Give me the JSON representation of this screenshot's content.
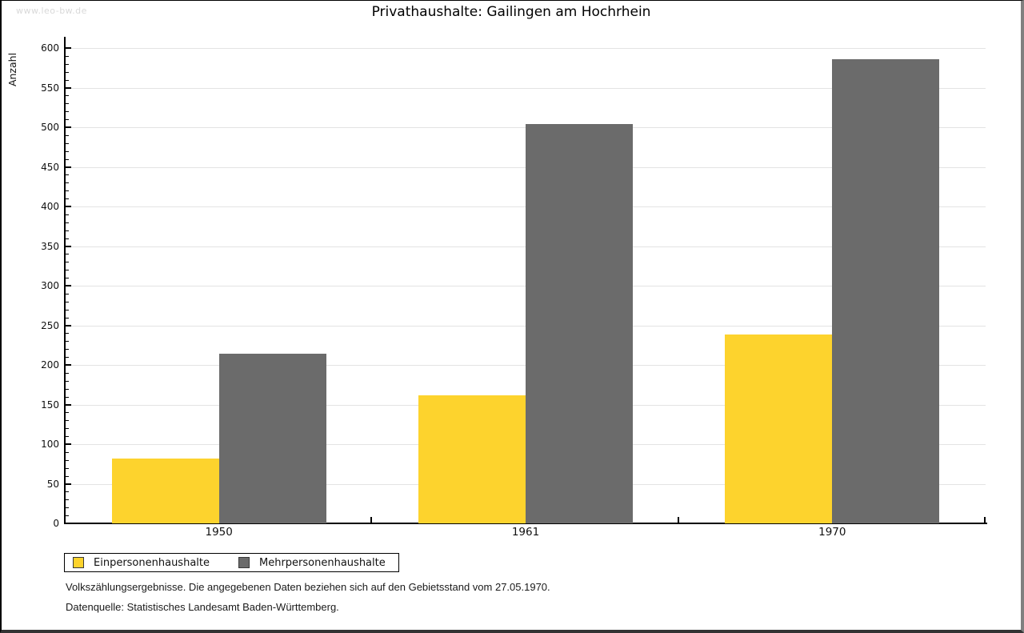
{
  "watermark": "www.leo-bw.de",
  "title": "Privathaushalte: Gailingen am Hochrhein",
  "chart_data": {
    "type": "bar",
    "title": "Privathaushalte: Gailingen am Hochrhein",
    "categories": [
      "1950",
      "1961",
      "1970"
    ],
    "series": [
      {
        "name": "Einpersonenhaushalte",
        "color": "#FDD32D",
        "values": [
          82,
          162,
          238
        ]
      },
      {
        "name": "Mehrpersonenhaushalte",
        "color": "#6B6B6B",
        "values": [
          214,
          504,
          586
        ]
      }
    ],
    "ylabel": "Anzahl",
    "xlabel": "",
    "ylim": [
      0,
      600
    ],
    "ytick_step": 50,
    "minor_tick_step": 10,
    "grid": "horizontal",
    "legend_position": "bottom-left"
  },
  "footnotes": [
    "Volkszählungsergebnisse. Die angegebenen Daten beziehen sich auf den Gebietsstand vom 27.05.1970.",
    "Datenquelle: Statistisches Landesamt Baden-Württemberg."
  ]
}
